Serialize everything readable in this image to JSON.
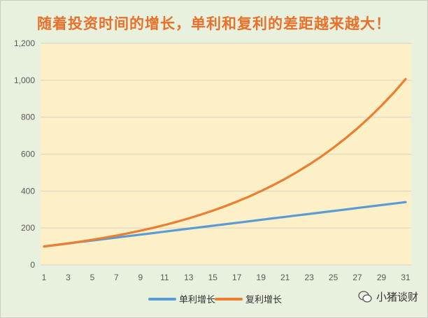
{
  "chart_data": {
    "type": "line",
    "title": "随着投资时间的增长，单利和复利的差距越来越大！",
    "xlabel": "",
    "ylabel": "",
    "x": [
      1,
      2,
      3,
      4,
      5,
      6,
      7,
      8,
      9,
      10,
      11,
      12,
      13,
      14,
      15,
      16,
      17,
      18,
      19,
      20,
      21,
      22,
      23,
      24,
      25,
      26,
      27,
      28,
      29,
      30,
      31
    ],
    "x_ticks": [
      "1",
      "3",
      "5",
      "7",
      "9",
      "11",
      "13",
      "15",
      "17",
      "19",
      "21",
      "23",
      "25",
      "27",
      "29",
      "31"
    ],
    "y_ticks": [
      "0",
      "200",
      "400",
      "600",
      "800",
      "1,000",
      "1,200"
    ],
    "ylim": [
      0,
      1200
    ],
    "grid": "horizontal",
    "legend_position": "bottom",
    "series": [
      {
        "name": "单利增长",
        "color": "#5b9bd5",
        "values": [
          100,
          108,
          116,
          124,
          132,
          140,
          148,
          156,
          164,
          172,
          180,
          188,
          196,
          204,
          212,
          220,
          228,
          236,
          244,
          252,
          260,
          268,
          276,
          284,
          292,
          300,
          308,
          316,
          324,
          332,
          340
        ]
      },
      {
        "name": "复利增长",
        "color": "#ed7d31",
        "values": [
          100,
          108,
          116.6,
          126,
          136,
          146.9,
          158.7,
          171.4,
          185.1,
          199.9,
          215.9,
          233.2,
          251.8,
          272,
          293.7,
          317.2,
          342.6,
          370,
          399.6,
          431.6,
          466.1,
          503.4,
          543.7,
          587.2,
          634.1,
          684.8,
          739.6,
          798.8,
          862.7,
          931.7,
          1006.3
        ]
      }
    ]
  },
  "watermark": {
    "text": "小猪谈财"
  }
}
